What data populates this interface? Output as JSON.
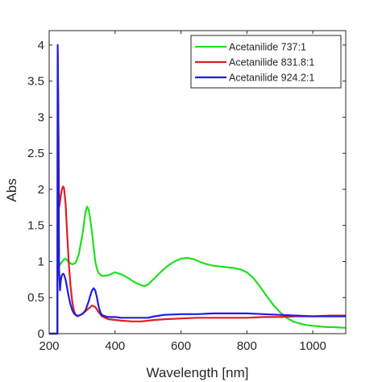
{
  "chart_data": {
    "type": "line",
    "xlabel": "Wavelength [nm]",
    "ylabel": "Abs",
    "xlim": [
      200,
      1100
    ],
    "ylim": [
      0,
      4.2
    ],
    "xticks": [
      200,
      400,
      600,
      800,
      1000
    ],
    "xtick_labels": [
      "200",
      "400",
      "600",
      "800",
      "1000"
    ],
    "yticks": [
      0,
      0.5,
      1,
      1.5,
      2,
      2.5,
      3,
      3.5,
      4
    ],
    "ytick_labels": [
      "0",
      "0.5",
      "1",
      "1.5",
      "2",
      "2.5",
      "3",
      "3.5",
      "4"
    ],
    "grid": false,
    "legend_position": "top-right",
    "series": [
      {
        "name": "Acetanilide 737:1",
        "color": "#1EE01E",
        "x": [
          200,
          225,
          226,
          228,
          230,
          232,
          235,
          240,
          245,
          250,
          260,
          270,
          280,
          290,
          300,
          305,
          310,
          315,
          320,
          325,
          330,
          335,
          340,
          345,
          350,
          360,
          380,
          400,
          420,
          440,
          460,
          480,
          490,
          500,
          520,
          540,
          560,
          580,
          600,
          620,
          640,
          660,
          680,
          700,
          720,
          740,
          760,
          780,
          800,
          820,
          840,
          860,
          880,
          900,
          920,
          940,
          960,
          980,
          1000,
          1020,
          1040,
          1060,
          1080,
          1100
        ],
        "y": [
          0.0,
          0.0,
          3.9,
          2.0,
          1.0,
          0.95,
          0.97,
          1.0,
          1.03,
          1.04,
          0.99,
          0.96,
          0.98,
          1.1,
          1.35,
          1.5,
          1.68,
          1.76,
          1.72,
          1.58,
          1.4,
          1.2,
          1.0,
          0.9,
          0.84,
          0.8,
          0.81,
          0.85,
          0.82,
          0.77,
          0.71,
          0.67,
          0.66,
          0.68,
          0.77,
          0.86,
          0.94,
          1.0,
          1.04,
          1.05,
          1.03,
          0.99,
          0.96,
          0.94,
          0.93,
          0.92,
          0.91,
          0.89,
          0.85,
          0.77,
          0.65,
          0.52,
          0.4,
          0.3,
          0.22,
          0.17,
          0.14,
          0.12,
          0.11,
          0.1,
          0.09,
          0.09,
          0.085,
          0.08
        ]
      },
      {
        "name": "Acetanilide 831.8:1",
        "color": "#E01E1E",
        "x": [
          200,
          225,
          226,
          228,
          230,
          232,
          235,
          238,
          240,
          242,
          245,
          250,
          255,
          260,
          265,
          270,
          275,
          280,
          285,
          290,
          300,
          310,
          320,
          330,
          340,
          350,
          360,
          380,
          400,
          420,
          450,
          480,
          500,
          520,
          550,
          600,
          650,
          700,
          750,
          800,
          850,
          900,
          950,
          1000,
          1050,
          1100
        ],
        "y": [
          0.0,
          0.0,
          3.9,
          3.0,
          1.75,
          1.8,
          1.9,
          1.98,
          2.02,
          2.04,
          2.02,
          1.8,
          1.35,
          0.95,
          0.65,
          0.45,
          0.32,
          0.26,
          0.24,
          0.25,
          0.27,
          0.31,
          0.35,
          0.39,
          0.37,
          0.3,
          0.24,
          0.2,
          0.19,
          0.18,
          0.17,
          0.17,
          0.18,
          0.19,
          0.2,
          0.21,
          0.22,
          0.22,
          0.22,
          0.22,
          0.23,
          0.23,
          0.24,
          0.24,
          0.25,
          0.25
        ]
      },
      {
        "name": "Acetanilide 924.2:1",
        "color": "#1E1EE0",
        "x": [
          200,
          225,
          226,
          228,
          230,
          233,
          235,
          238,
          240,
          242,
          245,
          250,
          255,
          260,
          265,
          270,
          275,
          280,
          285,
          290,
          300,
          310,
          320,
          325,
          330,
          335,
          340,
          345,
          350,
          355,
          360,
          370,
          380,
          400,
          420,
          450,
          480,
          500,
          520,
          550,
          600,
          650,
          700,
          750,
          800,
          850,
          900,
          950,
          1000,
          1050,
          1100
        ],
        "y": [
          0.0,
          0.0,
          4.0,
          3.0,
          0.9,
          0.6,
          0.72,
          0.8,
          0.82,
          0.83,
          0.82,
          0.75,
          0.62,
          0.5,
          0.4,
          0.33,
          0.28,
          0.26,
          0.25,
          0.25,
          0.27,
          0.32,
          0.45,
          0.53,
          0.6,
          0.63,
          0.6,
          0.5,
          0.38,
          0.3,
          0.26,
          0.24,
          0.23,
          0.23,
          0.22,
          0.22,
          0.22,
          0.22,
          0.24,
          0.26,
          0.27,
          0.27,
          0.28,
          0.28,
          0.28,
          0.27,
          0.26,
          0.25,
          0.24,
          0.24,
          0.24
        ]
      }
    ]
  }
}
